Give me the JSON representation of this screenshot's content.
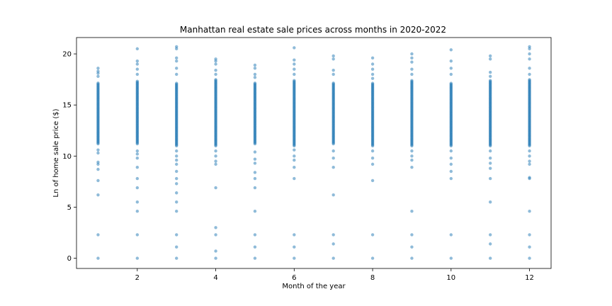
{
  "chart_data": {
    "type": "scatter",
    "title": "Manhattan real estate sale prices across months in 2020-2022",
    "xlabel": "Month of the year",
    "ylabel": "Ln of home sale price ($)",
    "xlim": [
      0.45,
      12.55
    ],
    "ylim": [
      -1.0,
      21.6
    ],
    "xticks": [
      2,
      4,
      6,
      8,
      10,
      12
    ],
    "yticks": [
      0,
      5,
      10,
      15,
      20
    ],
    "grid": false,
    "legend": "none",
    "marker_color": "#1f77b4",
    "marker_alpha": 0.5,
    "series": [
      {
        "x_categories": [
          1,
          2,
          3,
          4,
          5,
          6,
          7,
          8,
          9,
          10,
          11,
          12
        ],
        "dense_band": [
          {
            "x": 1,
            "low": 11.2,
            "high": 17.2
          },
          {
            "x": 2,
            "low": 11.2,
            "high": 17.4
          },
          {
            "x": 3,
            "low": 11.0,
            "high": 17.2
          },
          {
            "x": 4,
            "low": 11.0,
            "high": 17.5
          },
          {
            "x": 5,
            "low": 11.2,
            "high": 17.2
          },
          {
            "x": 6,
            "low": 11.0,
            "high": 17.4
          },
          {
            "x": 7,
            "low": 11.2,
            "high": 17.2
          },
          {
            "x": 8,
            "low": 11.0,
            "high": 17.2
          },
          {
            "x": 9,
            "low": 11.0,
            "high": 17.4
          },
          {
            "x": 10,
            "low": 11.0,
            "high": 17.2
          },
          {
            "x": 11,
            "low": 11.0,
            "high": 17.4
          },
          {
            "x": 12,
            "low": 11.0,
            "high": 17.5
          }
        ],
        "points": [
          [
            1,
            18.6
          ],
          [
            1,
            18.3
          ],
          [
            1,
            18.1
          ],
          [
            1,
            17.8
          ],
          [
            1,
            10.6
          ],
          [
            1,
            10.3
          ],
          [
            1,
            9.4
          ],
          [
            1,
            9.2
          ],
          [
            1,
            8.7
          ],
          [
            1,
            7.6
          ],
          [
            1,
            6.2
          ],
          [
            1,
            2.3
          ],
          [
            1,
            0.0
          ],
          [
            2,
            20.5
          ],
          [
            2,
            19.3
          ],
          [
            2,
            19.0
          ],
          [
            2,
            18.5
          ],
          [
            2,
            18.0
          ],
          [
            2,
            10.5
          ],
          [
            2,
            10.2
          ],
          [
            2,
            9.8
          ],
          [
            2,
            8.9
          ],
          [
            2,
            7.8
          ],
          [
            2,
            6.9
          ],
          [
            2,
            5.5
          ],
          [
            2,
            4.6
          ],
          [
            2,
            2.3
          ],
          [
            2,
            0.0
          ],
          [
            3,
            20.7
          ],
          [
            3,
            20.5
          ],
          [
            3,
            19.6
          ],
          [
            3,
            19.3
          ],
          [
            3,
            18.6
          ],
          [
            3,
            18.0
          ],
          [
            3,
            10.5
          ],
          [
            3,
            10.0
          ],
          [
            3,
            9.6
          ],
          [
            3,
            9.2
          ],
          [
            3,
            8.5
          ],
          [
            3,
            7.8
          ],
          [
            3,
            7.3
          ],
          [
            3,
            6.4
          ],
          [
            3,
            5.5
          ],
          [
            3,
            4.6
          ],
          [
            3,
            2.3
          ],
          [
            3,
            1.1
          ],
          [
            3,
            0.0
          ],
          [
            4,
            19.5
          ],
          [
            4,
            19.3
          ],
          [
            4,
            19.0
          ],
          [
            4,
            18.4
          ],
          [
            4,
            18.0
          ],
          [
            4,
            10.5
          ],
          [
            4,
            10.0
          ],
          [
            4,
            9.5
          ],
          [
            4,
            9.2
          ],
          [
            4,
            6.9
          ],
          [
            4,
            3.0
          ],
          [
            4,
            2.3
          ],
          [
            4,
            0.7
          ],
          [
            4,
            0.0
          ],
          [
            5,
            18.9
          ],
          [
            5,
            18.6
          ],
          [
            5,
            18.0
          ],
          [
            5,
            17.7
          ],
          [
            5,
            10.4
          ],
          [
            5,
            9.7
          ],
          [
            5,
            9.3
          ],
          [
            5,
            8.4
          ],
          [
            5,
            7.8
          ],
          [
            5,
            6.9
          ],
          [
            5,
            4.6
          ],
          [
            5,
            2.3
          ],
          [
            5,
            1.1
          ],
          [
            5,
            0.0
          ],
          [
            6,
            20.6
          ],
          [
            6,
            19.4
          ],
          [
            6,
            19.0
          ],
          [
            6,
            18.5
          ],
          [
            6,
            18.0
          ],
          [
            6,
            10.6
          ],
          [
            6,
            10.0
          ],
          [
            6,
            9.6
          ],
          [
            6,
            8.9
          ],
          [
            6,
            7.8
          ],
          [
            6,
            2.3
          ],
          [
            6,
            1.1
          ],
          [
            6,
            0.0
          ],
          [
            7,
            19.8
          ],
          [
            7,
            19.5
          ],
          [
            7,
            18.4
          ],
          [
            7,
            18.0
          ],
          [
            7,
            10.5
          ],
          [
            7,
            9.8
          ],
          [
            7,
            8.9
          ],
          [
            7,
            6.2
          ],
          [
            7,
            2.3
          ],
          [
            7,
            1.4
          ],
          [
            7,
            0.0
          ],
          [
            8,
            19.6
          ],
          [
            8,
            19.0
          ],
          [
            8,
            18.5
          ],
          [
            8,
            18.0
          ],
          [
            8,
            17.6
          ],
          [
            8,
            10.5
          ],
          [
            8,
            9.8
          ],
          [
            8,
            9.2
          ],
          [
            8,
            7.6
          ],
          [
            8,
            2.3
          ],
          [
            8,
            0.0
          ],
          [
            9,
            20.0
          ],
          [
            9,
            19.6
          ],
          [
            9,
            19.2
          ],
          [
            9,
            18.5
          ],
          [
            9,
            18.0
          ],
          [
            9,
            10.5
          ],
          [
            9,
            10.0
          ],
          [
            9,
            9.6
          ],
          [
            9,
            8.9
          ],
          [
            9,
            4.6
          ],
          [
            9,
            2.3
          ],
          [
            9,
            1.1
          ],
          [
            9,
            0.0
          ],
          [
            10,
            20.4
          ],
          [
            10,
            19.3
          ],
          [
            10,
            18.6
          ],
          [
            10,
            18.0
          ],
          [
            10,
            10.5
          ],
          [
            10,
            9.8
          ],
          [
            10,
            9.2
          ],
          [
            10,
            8.5
          ],
          [
            10,
            7.8
          ],
          [
            10,
            2.3
          ],
          [
            10,
            0.0
          ],
          [
            11,
            19.8
          ],
          [
            11,
            19.5
          ],
          [
            11,
            18.2
          ],
          [
            11,
            17.8
          ],
          [
            11,
            10.5
          ],
          [
            11,
            9.8
          ],
          [
            11,
            9.3
          ],
          [
            11,
            8.8
          ],
          [
            11,
            7.8
          ],
          [
            11,
            5.5
          ],
          [
            11,
            2.3
          ],
          [
            11,
            1.4
          ],
          [
            11,
            0.0
          ],
          [
            12,
            20.7
          ],
          [
            12,
            20.5
          ],
          [
            12,
            20.0
          ],
          [
            12,
            19.5
          ],
          [
            12,
            18.6
          ],
          [
            12,
            18.0
          ],
          [
            12,
            10.5
          ],
          [
            12,
            10.0
          ],
          [
            12,
            9.5
          ],
          [
            12,
            9.2
          ],
          [
            12,
            7.9
          ],
          [
            12,
            7.8
          ],
          [
            12,
            4.6
          ],
          [
            12,
            2.3
          ],
          [
            12,
            1.1
          ],
          [
            12,
            0.0
          ]
        ]
      }
    ]
  }
}
